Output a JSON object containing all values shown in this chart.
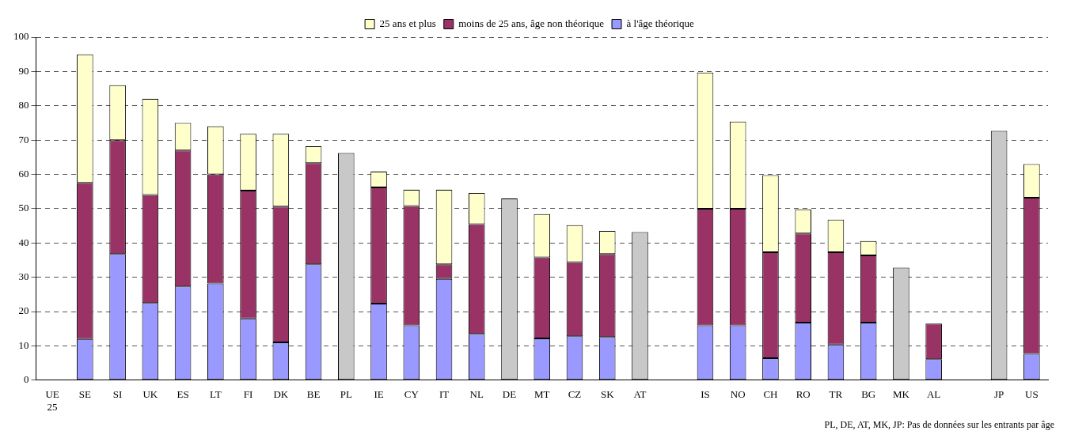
{
  "chart_data": {
    "type": "bar",
    "stacked": true,
    "categories": [
      "UE 25",
      "SE",
      "SI",
      "UK",
      "ES",
      "LT",
      "FI",
      "DK",
      "BE",
      "PL",
      "IE",
      "CY",
      "IT",
      "NL",
      "DE",
      "MT",
      "CZ",
      "SK",
      "AT",
      null,
      "IS",
      "NO",
      "CH",
      "RO",
      "TR",
      "BG",
      "MK",
      "AL",
      null,
      "JP",
      "US"
    ],
    "series": [
      {
        "name": "à l'âge théorique",
        "color": "#9999ff",
        "values": [
          null,
          12,
          36.8,
          22.5,
          27.3,
          28.2,
          18,
          11,
          33.8,
          null,
          22.3,
          16,
          29.5,
          13.5,
          null,
          12.2,
          12.8,
          12.6,
          null,
          null,
          16,
          16,
          6.4,
          16.8,
          10.4,
          16.8,
          null,
          6.1,
          null,
          null,
          7.7
        ]
      },
      {
        "name": "moins de 25 ans, âge non théorique",
        "color": "#993366",
        "values": [
          null,
          45.5,
          33.2,
          31.5,
          39.7,
          31.8,
          37.3,
          39.6,
          29.5,
          null,
          33.9,
          34.8,
          4.3,
          32,
          null,
          23.6,
          21.6,
          24.2,
          null,
          null,
          34,
          34,
          30.9,
          26,
          26.9,
          19.6,
          null,
          10.4,
          null,
          null,
          45.5
        ]
      },
      {
        "name": "25 ans et plus",
        "color": "#ffffcc",
        "values": [
          null,
          37.5,
          16,
          28,
          8,
          14,
          16.5,
          21.2,
          4.9,
          null,
          4.6,
          4.7,
          21.7,
          9.1,
          null,
          12.6,
          10.8,
          6.7,
          null,
          null,
          39.7,
          25.4,
          22.5,
          7,
          9.5,
          4.2,
          null,
          null,
          null,
          null,
          9.8
        ]
      },
      {
        "color": "#c8c8c8",
        "values": [
          null,
          null,
          null,
          null,
          null,
          null,
          null,
          null,
          null,
          66.2,
          null,
          null,
          null,
          null,
          53,
          null,
          null,
          null,
          43.2,
          null,
          null,
          null,
          null,
          null,
          null,
          null,
          32.8,
          null,
          null,
          72.7,
          null
        ]
      }
    ],
    "ylim": [
      0,
      100
    ],
    "yticks": [
      0,
      10,
      20,
      30,
      40,
      50,
      60,
      70,
      80,
      90,
      100
    ],
    "grid": "y",
    "legend": "top",
    "annotations": [
      "PL, DE, AT, MK, JP: Pas de données sur les entrants par âge"
    ]
  }
}
